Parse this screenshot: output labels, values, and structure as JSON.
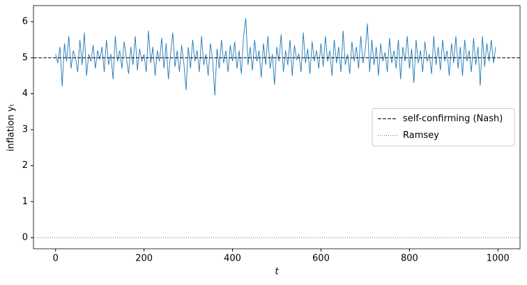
{
  "chart_data": {
    "type": "line",
    "xlabel": "t",
    "ylabel": "inflation yₜ",
    "xlim": [
      -50,
      1050
    ],
    "ylim": [
      -0.31,
      6.45
    ],
    "xticks": [
      0,
      200,
      400,
      600,
      800,
      1000
    ],
    "yticks": [
      0,
      1,
      2,
      3,
      4,
      5,
      6
    ],
    "legend": "center right",
    "x": [
      0,
      5,
      10,
      15,
      20,
      25,
      30,
      35,
      40,
      45,
      50,
      55,
      60,
      65,
      70,
      75,
      80,
      85,
      90,
      95,
      100,
      105,
      110,
      115,
      120,
      125,
      130,
      135,
      140,
      145,
      150,
      155,
      160,
      165,
      170,
      175,
      180,
      185,
      190,
      195,
      200,
      205,
      210,
      215,
      220,
      225,
      230,
      235,
      240,
      245,
      250,
      255,
      260,
      265,
      270,
      275,
      280,
      285,
      290,
      295,
      300,
      305,
      310,
      315,
      320,
      325,
      330,
      335,
      340,
      345,
      350,
      355,
      360,
      365,
      370,
      375,
      380,
      385,
      390,
      395,
      400,
      405,
      410,
      415,
      420,
      425,
      430,
      435,
      440,
      445,
      450,
      455,
      460,
      465,
      470,
      475,
      480,
      485,
      490,
      495,
      500,
      505,
      510,
      515,
      520,
      525,
      530,
      535,
      540,
      545,
      550,
      555,
      560,
      565,
      570,
      575,
      580,
      585,
      590,
      595,
      600,
      605,
      610,
      615,
      620,
      625,
      630,
      635,
      640,
      645,
      650,
      655,
      660,
      665,
      670,
      675,
      680,
      685,
      690,
      695,
      700,
      705,
      710,
      715,
      720,
      725,
      730,
      735,
      740,
      745,
      750,
      755,
      760,
      765,
      770,
      775,
      780,
      785,
      790,
      795,
      800,
      805,
      810,
      815,
      820,
      825,
      830,
      835,
      840,
      845,
      850,
      855,
      860,
      865,
      870,
      875,
      880,
      885,
      890,
      895,
      900,
      905,
      910,
      915,
      920,
      925,
      930,
      935,
      940,
      945,
      950,
      955,
      960,
      965,
      970,
      975,
      980,
      985,
      990,
      995
    ],
    "series": [
      {
        "color": "#1f77b4",
        "values": [
          5.1,
          4.85,
          5.3,
          4.2,
          5.4,
          4.9,
          5.6,
          4.7,
          5.2,
          5.0,
          4.6,
          5.5,
          4.8,
          5.7,
          4.5,
          5.1,
          4.9,
          5.35,
          4.7,
          5.2,
          4.95,
          5.3,
          4.6,
          5.5,
          4.8,
          5.1,
          4.4,
          5.6,
          4.9,
          5.2,
          4.7,
          5.45,
          5.0,
          4.55,
          5.3,
          4.8,
          5.6,
          4.65,
          5.25,
          4.9,
          5.1,
          4.6,
          5.75,
          4.85,
          5.3,
          4.5,
          5.2,
          4.9,
          5.55,
          4.7,
          5.4,
          4.4,
          5.1,
          5.7,
          4.75,
          5.2,
          4.6,
          5.35,
          4.85,
          4.1,
          5.3,
          4.7,
          5.5,
          4.9,
          5.2,
          4.6,
          5.6,
          4.8,
          5.1,
          4.5,
          5.4,
          4.95,
          3.95,
          5.25,
          4.7,
          5.5,
          4.85,
          5.2,
          4.6,
          5.35,
          4.9,
          5.45,
          4.7,
          5.2,
          4.55,
          5.6,
          6.1,
          4.8,
          5.3,
          4.65,
          5.5,
          4.9,
          5.2,
          4.45,
          5.4,
          4.8,
          5.6,
          4.7,
          5.1,
          4.25,
          5.3,
          4.9,
          5.65,
          4.6,
          5.2,
          4.8,
          5.5,
          4.5,
          5.35,
          4.95,
          5.1,
          4.6,
          5.7,
          4.85,
          5.25,
          4.55,
          5.45,
          4.9,
          5.2,
          4.7,
          5.4,
          4.75,
          5.6,
          4.9,
          5.2,
          4.5,
          5.5,
          4.85,
          5.3,
          4.6,
          5.75,
          4.8,
          5.1,
          4.55,
          5.45,
          4.9,
          5.3,
          4.7,
          5.6,
          4.85,
          5.2,
          5.95,
          4.6,
          5.5,
          4.8,
          5.3,
          4.5,
          5.4,
          4.9,
          5.15,
          4.6,
          5.55,
          4.85,
          5.2,
          4.7,
          5.5,
          4.4,
          5.3,
          4.9,
          5.6,
          4.7,
          5.25,
          4.3,
          5.5,
          4.85,
          5.2,
          4.6,
          5.45,
          4.9,
          5.1,
          4.55,
          5.6,
          4.8,
          5.3,
          4.65,
          5.5,
          4.9,
          5.2,
          4.5,
          5.4,
          4.85,
          5.6,
          4.7,
          5.3,
          4.5,
          5.5,
          4.9,
          5.2,
          4.6,
          5.55,
          4.8,
          5.3,
          4.22,
          5.6,
          4.75,
          5.4,
          4.9,
          5.5,
          4.85,
          5.3
        ]
      }
    ],
    "hlines": [
      {
        "name": "self-confirming (Nash)",
        "value": 5,
        "color": "#000000",
        "style": "dashed"
      },
      {
        "name": "Ramsey",
        "value": 0,
        "color": "#2ca02c",
        "style": "dotted"
      }
    ]
  }
}
